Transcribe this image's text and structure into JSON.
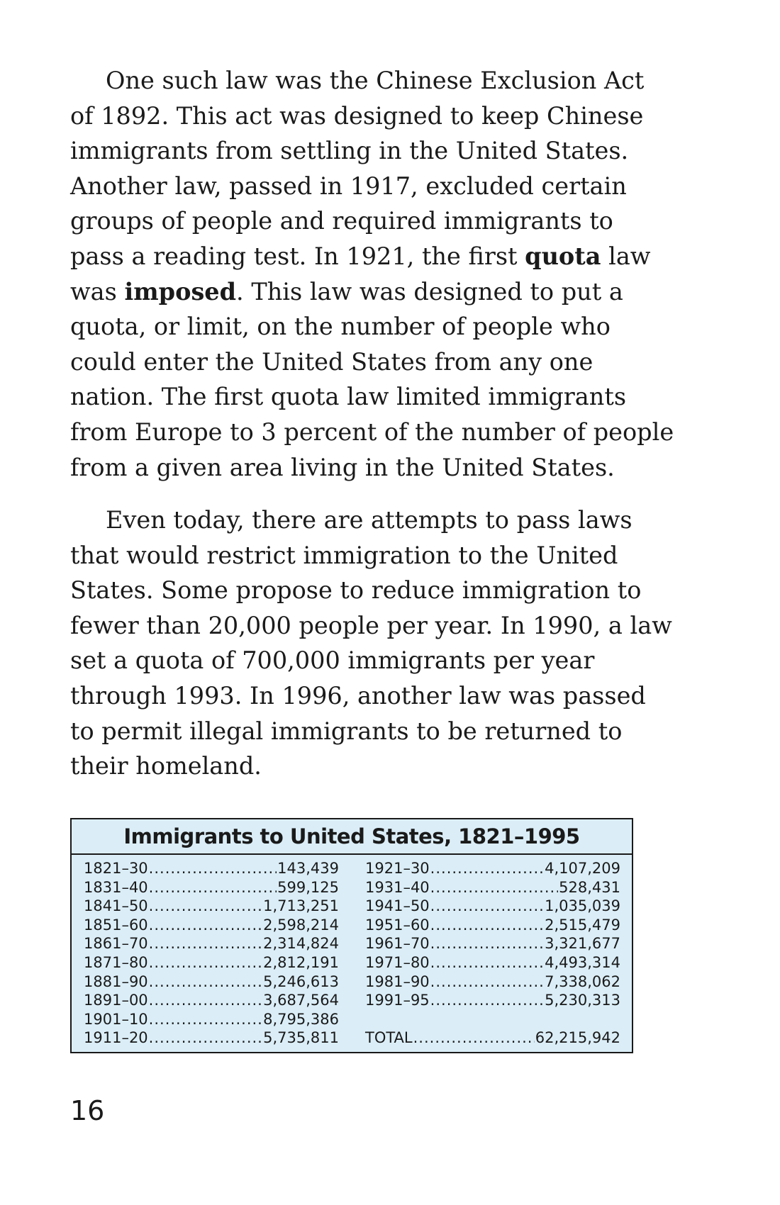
{
  "paragraph_1": {
    "lines": [
      "One such law was the Chinese Exclusion Act",
      "of 1892. This act was designed to keep Chinese",
      "immigrants from settling in the United States.",
      "Another law, passed in 1917, excluded certain",
      "groups of people and required immigrants to",
      "pass a reading test. In 1921, the first ",
      "quota",
      " law",
      "was ",
      "imposed",
      ". This law was designed to put a",
      "quota, or limit, on the number of people who",
      "could enter the United States from any one",
      "nation. The first quota law limited immigrants",
      "from Europe to 3 percent of the number of people",
      "from a given area living in the United States."
    ]
  },
  "paragraph_2": {
    "lines": [
      "Even today, there are attempts to pass laws",
      "that would restrict immigration to the United",
      "States. Some propose to reduce immigration to",
      "fewer than 20,000 people per year. In 1990, a law",
      "set a quota of 700,000 immigrants per year",
      "through 1993. In 1996, another law was passed",
      "to permit illegal immigrants to be returned to",
      "their homeland."
    ]
  },
  "table": {
    "title": "Immigrants to United States, 1821–1995",
    "left_rows": [
      {
        "period": "1821–30",
        "value": "143,439"
      },
      {
        "period": "1831–40",
        "value": "599,125"
      },
      {
        "period": "1841–50",
        "value": "1,713,251"
      },
      {
        "period": "1851–60",
        "value": "2,598,214"
      },
      {
        "period": "1861–70",
        "value": "2,314,824"
      },
      {
        "period": "1871–80",
        "value": "2,812,191"
      },
      {
        "period": "1881–90",
        "value": "5,246,613"
      },
      {
        "period": "1891–00",
        "value": "3,687,564"
      },
      {
        "period": "1901–10",
        "value": "8,795,386"
      },
      {
        "period": "1911–20",
        "value": "5,735,811"
      }
    ],
    "right_rows": [
      {
        "period": "1921–30",
        "value": "4,107,209"
      },
      {
        "period": "1931–40",
        "value": "528,431"
      },
      {
        "period": "1941–50",
        "value": "1,035,039"
      },
      {
        "period": "1951–60",
        "value": "2,515,479"
      },
      {
        "period": "1961–70",
        "value": "3,321,677"
      },
      {
        "period": "1971–80",
        "value": "4,493,314"
      },
      {
        "period": "1981–90",
        "value": "7,338,062"
      },
      {
        "period": "1991–95",
        "value": "5,230,313"
      }
    ],
    "total": {
      "period": "TOTAL",
      "value": "62,215,942"
    }
  },
  "page_number": "16",
  "colors": {
    "table_background": "#dbeef8",
    "text": "#1a1a1a"
  }
}
